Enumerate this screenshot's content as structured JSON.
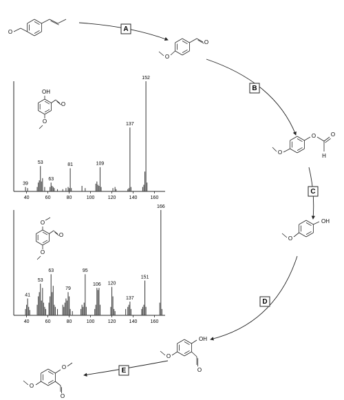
{
  "chart_data": [
    {
      "type": "bar",
      "xlim": [
        28,
        170
      ],
      "ylim": [
        0,
        100
      ],
      "xticks": [
        40,
        60,
        80,
        100,
        120,
        140,
        160
      ],
      "color": "#444444",
      "x": [
        39,
        41,
        50,
        51,
        52,
        53,
        54,
        55,
        57,
        62,
        63,
        64,
        65,
        66,
        69,
        74,
        77,
        79,
        80,
        81,
        82,
        92,
        95,
        105,
        106,
        107,
        108,
        109,
        110,
        121,
        123,
        124,
        135,
        136,
        137,
        138,
        149,
        150,
        151,
        152,
        153
      ],
      "values": [
        4,
        3,
        4,
        8,
        10,
        23,
        9,
        12,
        4,
        4,
        8,
        5,
        4,
        3,
        2,
        2,
        3,
        4,
        3,
        21,
        3,
        5,
        3,
        7,
        9,
        6,
        5,
        22,
        4,
        3,
        4,
        2,
        2,
        3,
        58,
        4,
        4,
        6,
        18,
        100,
        8
      ],
      "labels": [
        "39",
        null,
        null,
        null,
        null,
        "53",
        null,
        null,
        null,
        null,
        "63",
        null,
        null,
        null,
        null,
        null,
        null,
        null,
        null,
        "81",
        null,
        null,
        null,
        null,
        null,
        null,
        null,
        "109",
        null,
        null,
        null,
        null,
        null,
        null,
        "137",
        null,
        null,
        null,
        null,
        "152",
        null
      ]
    },
    {
      "type": "bar",
      "xlim": [
        28,
        170
      ],
      "ylim": [
        0,
        100
      ],
      "xticks": [
        40,
        60,
        80,
        100,
        120,
        140,
        160
      ],
      "color": "#444444",
      "x": [
        39,
        40,
        41,
        42,
        43,
        50,
        51,
        52,
        53,
        54,
        55,
        56,
        57,
        58,
        61,
        62,
        63,
        64,
        65,
        66,
        67,
        69,
        74,
        75,
        76,
        77,
        78,
        79,
        80,
        81,
        83,
        91,
        92,
        93,
        94,
        95,
        96,
        104,
        105,
        106,
        107,
        108,
        109,
        119,
        120,
        121,
        122,
        123,
        133,
        135,
        136,
        137,
        138,
        148,
        149,
        150,
        151,
        152,
        165,
        166,
        167
      ],
      "values": [
        6,
        10,
        16,
        8,
        5,
        10,
        18,
        22,
        30,
        14,
        26,
        12,
        8,
        6,
        12,
        18,
        39,
        22,
        28,
        10,
        8,
        6,
        10,
        8,
        12,
        16,
        14,
        22,
        18,
        6,
        4,
        6,
        10,
        8,
        12,
        39,
        8,
        6,
        10,
        26,
        24,
        26,
        10,
        8,
        27,
        18,
        6,
        4,
        6,
        8,
        10,
        13,
        6,
        6,
        8,
        10,
        33,
        8,
        12,
        100,
        6
      ],
      "labels": [
        null,
        null,
        "41",
        null,
        null,
        null,
        null,
        null,
        "53",
        null,
        null,
        null,
        null,
        null,
        null,
        null,
        "63",
        null,
        null,
        null,
        null,
        null,
        null,
        null,
        null,
        null,
        null,
        "79",
        null,
        null,
        null,
        null,
        null,
        null,
        null,
        "95",
        null,
        null,
        null,
        "106",
        null,
        null,
        null,
        null,
        "120",
        null,
        null,
        null,
        null,
        null,
        null,
        "137",
        null,
        null,
        null,
        null,
        "151",
        null,
        null,
        "166",
        null
      ]
    }
  ],
  "scheme": {
    "steps": [
      "A",
      "B",
      "C",
      "D",
      "E"
    ],
    "molecules": [
      {
        "atoms": [
          "O"
        ]
      },
      {
        "atoms": [
          "O",
          "O"
        ]
      },
      {
        "atoms": [
          "O",
          "O",
          "O",
          "H"
        ]
      },
      {
        "atoms": [
          "OH",
          "O"
        ]
      },
      {
        "atoms": [
          "OH",
          "O",
          "O"
        ]
      },
      {
        "atoms": [
          "O",
          "O",
          "O"
        ]
      },
      {
        "atoms": [
          "OH",
          "O",
          "O"
        ]
      },
      {
        "atoms": [
          "O",
          "O",
          "O"
        ]
      }
    ]
  }
}
